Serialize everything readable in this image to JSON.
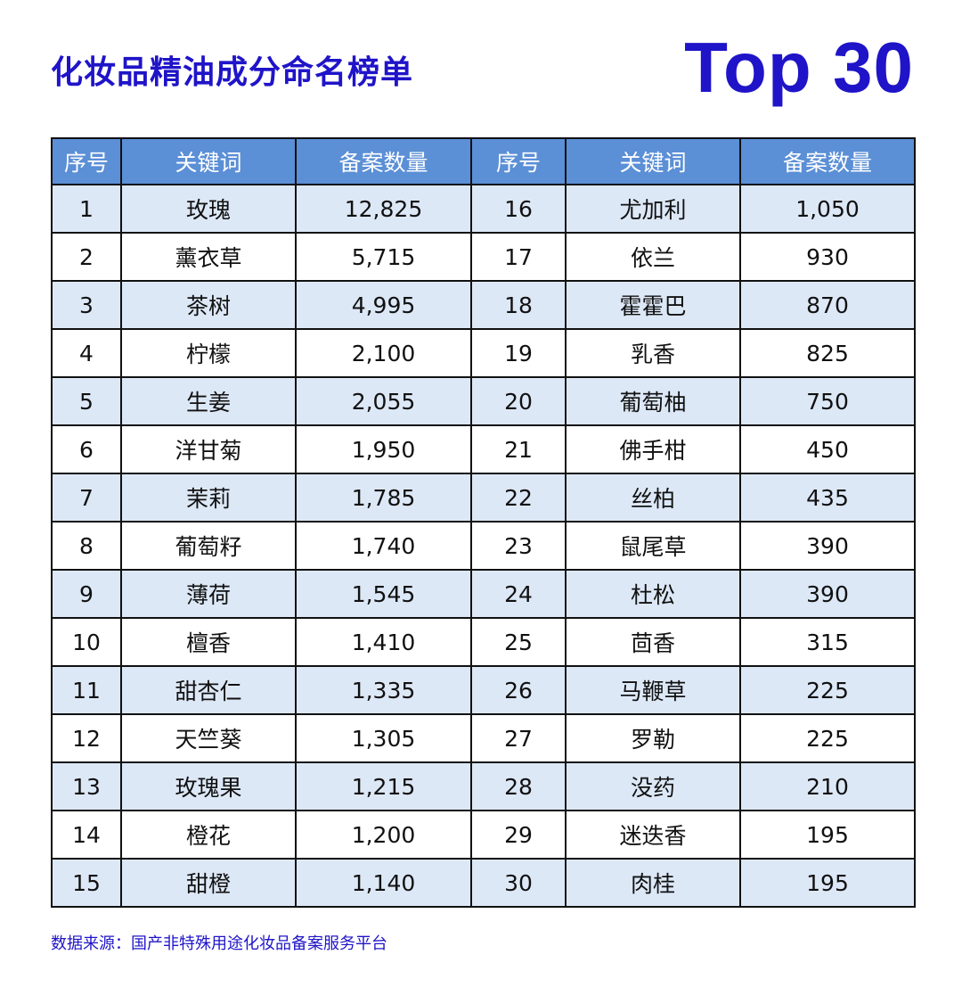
{
  "title": "化妆品精油成分命名榜单",
  "badge": "Top 30",
  "headers": [
    "序号",
    "关键词",
    "备案数量",
    "序号",
    "关键词",
    "备案数量"
  ],
  "rows": [
    [
      "1",
      "玫瑰",
      "12,825",
      "16",
      "尤加利",
      "1,050"
    ],
    [
      "2",
      "薰衣草",
      "5,715",
      "17",
      "依兰",
      "930"
    ],
    [
      "3",
      "茶树",
      "4,995",
      "18",
      "霍霍巴",
      "870"
    ],
    [
      "4",
      "柠檬",
      "2,100",
      "19",
      "乳香",
      "825"
    ],
    [
      "5",
      "生姜",
      "2,055",
      "20",
      "葡萄柚",
      "750"
    ],
    [
      "6",
      "洋甘菊",
      "1,950",
      "21",
      "佛手柑",
      "450"
    ],
    [
      "7",
      "茉莉",
      "1,785",
      "22",
      "丝柏",
      "435"
    ],
    [
      "8",
      "葡萄籽",
      "1,740",
      "23",
      "鼠尾草",
      "390"
    ],
    [
      "9",
      "薄荷",
      "1,545",
      "24",
      "杜松",
      "390"
    ],
    [
      "10",
      "檀香",
      "1,410",
      "25",
      "茴香",
      "315"
    ],
    [
      "11",
      "甜杏仁",
      "1,335",
      "26",
      "马鞭草",
      "225"
    ],
    [
      "12",
      "天竺葵",
      "1,305",
      "27",
      "罗勒",
      "225"
    ],
    [
      "13",
      "玫瑰果",
      "1,215",
      "28",
      "没药",
      "210"
    ],
    [
      "14",
      "橙花",
      "1,200",
      "29",
      "迷迭香",
      "195"
    ],
    [
      "15",
      "甜橙",
      "1,140",
      "30",
      "肉桂",
      "195"
    ]
  ],
  "footnote": "数据来源：国产非特殊用途化妆品备案服务平台",
  "colors": {
    "accent": "#1f14c8",
    "header_bg": "#5b8fd6",
    "stripe_bg": "#dde8f7"
  }
}
